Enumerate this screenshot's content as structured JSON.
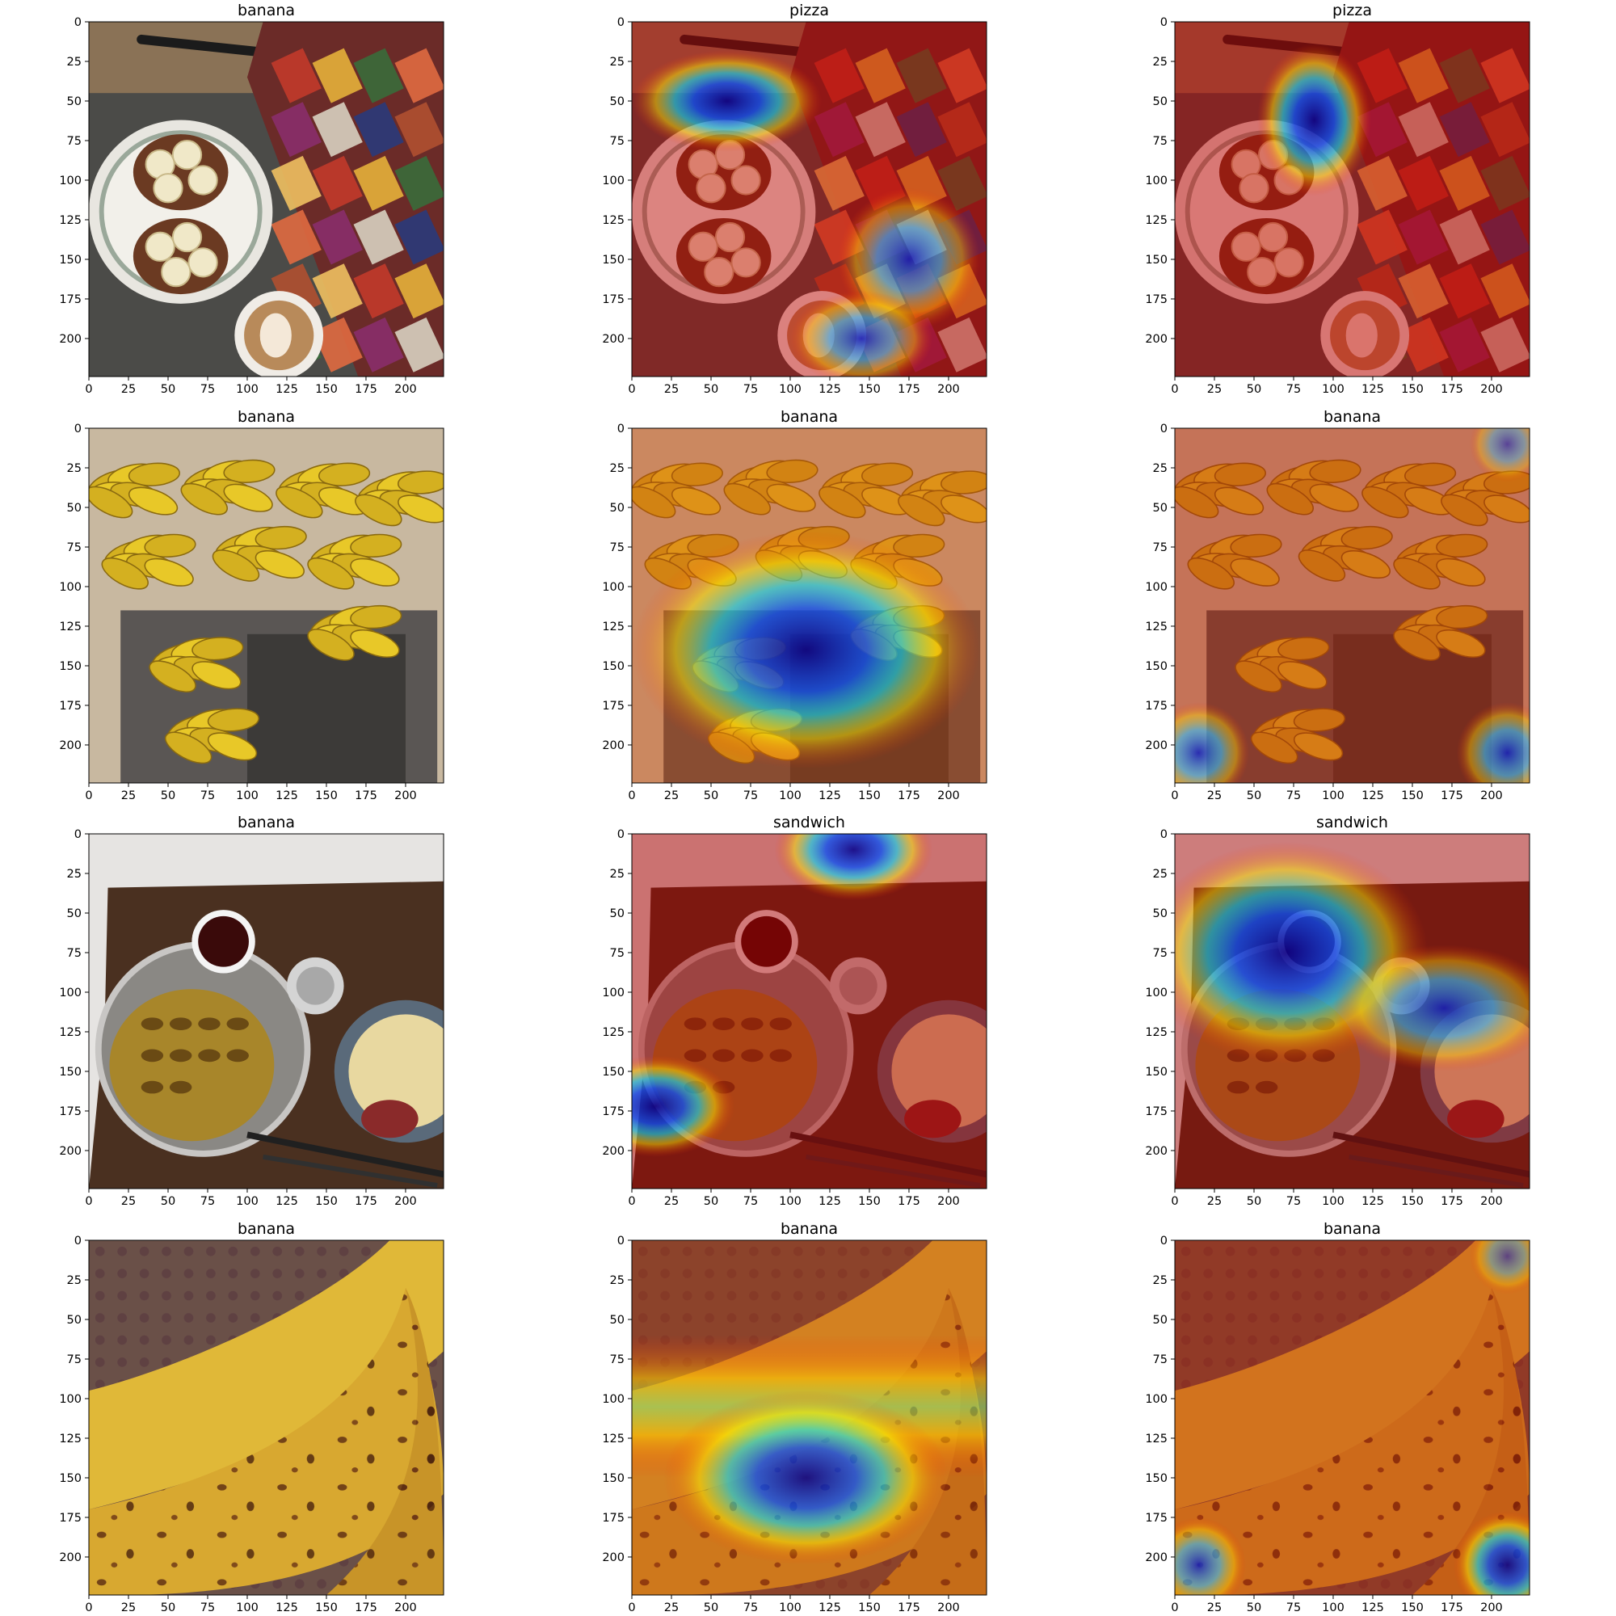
{
  "figure": {
    "tick_labels": [
      "0",
      "25",
      "50",
      "75",
      "100",
      "125",
      "150",
      "175",
      "200"
    ],
    "tick_values": [
      0,
      25,
      50,
      75,
      100,
      125,
      150,
      175,
      200
    ],
    "image_size": 224,
    "panels": [
      {
        "row": 0,
        "col": 0,
        "title": "banana",
        "scene": "breakfast-plate-with-magazine",
        "overlay": "none"
      },
      {
        "row": 0,
        "col": 1,
        "title": "pizza",
        "scene": "breakfast-plate-with-magazine",
        "overlay": "heatmap"
      },
      {
        "row": 0,
        "col": 2,
        "title": "pizza",
        "scene": "breakfast-plate-with-magazine",
        "overlay": "heatmap"
      },
      {
        "row": 1,
        "col": 0,
        "title": "banana",
        "scene": "hanging-banana-bunches",
        "overlay": "none"
      },
      {
        "row": 1,
        "col": 1,
        "title": "banana",
        "scene": "hanging-banana-bunches",
        "overlay": "heatmap"
      },
      {
        "row": 1,
        "col": 2,
        "title": "banana",
        "scene": "hanging-banana-bunches",
        "overlay": "heatmap"
      },
      {
        "row": 2,
        "col": 0,
        "title": "banana",
        "scene": "table-with-tea-and-omelette",
        "overlay": "none"
      },
      {
        "row": 2,
        "col": 1,
        "title": "sandwich",
        "scene": "table-with-tea-and-omelette",
        "overlay": "heatmap"
      },
      {
        "row": 2,
        "col": 2,
        "title": "sandwich",
        "scene": "table-with-tea-and-omelette",
        "overlay": "heatmap"
      },
      {
        "row": 3,
        "col": 0,
        "title": "banana",
        "scene": "closeup-ripe-bananas",
        "overlay": "none"
      },
      {
        "row": 3,
        "col": 1,
        "title": "banana",
        "scene": "closeup-ripe-bananas",
        "overlay": "heatmap"
      },
      {
        "row": 3,
        "col": 2,
        "title": "banana",
        "scene": "closeup-ripe-bananas",
        "overlay": "heatmap"
      }
    ]
  }
}
